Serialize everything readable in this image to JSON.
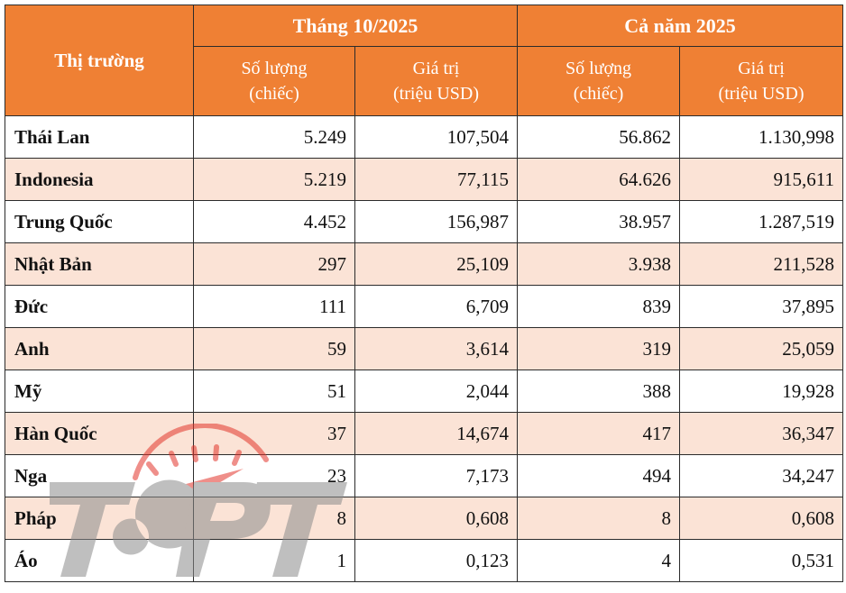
{
  "table": {
    "market_header": "Thị trường",
    "group_headers": [
      "Tháng 10/2025",
      "Cả năm 2025"
    ],
    "sub_headers": [
      {
        "line1": "Số lượng",
        "line2": "(chiếc)"
      },
      {
        "line1": "Giá trị",
        "line2": "(triệu USD)"
      },
      {
        "line1": "Số lượng",
        "line2": "(chiếc)"
      },
      {
        "line1": "Giá trị",
        "line2": "(triệu USD)"
      }
    ],
    "rows": [
      {
        "market": "Thái Lan",
        "m_qty": "5.249",
        "m_val": "107,504",
        "y_qty": "56.862",
        "y_val": "1.130,998"
      },
      {
        "market": "Indonesia",
        "m_qty": "5.219",
        "m_val": "77,115",
        "y_qty": "64.626",
        "y_val": "915,611"
      },
      {
        "market": "Trung Quốc",
        "m_qty": "4.452",
        "m_val": "156,987",
        "y_qty": "38.957",
        "y_val": "1.287,519"
      },
      {
        "market": "Nhật Bản",
        "m_qty": "297",
        "m_val": "25,109",
        "y_qty": "3.938",
        "y_val": "211,528"
      },
      {
        "market": "Đức",
        "m_qty": "111",
        "m_val": "6,709",
        "y_qty": "839",
        "y_val": "37,895"
      },
      {
        "market": "Anh",
        "m_qty": "59",
        "m_val": "3,614",
        "y_qty": "319",
        "y_val": "25,059"
      },
      {
        "market": "Mỹ",
        "m_qty": "51",
        "m_val": "2,044",
        "y_qty": "388",
        "y_val": "19,928"
      },
      {
        "market": "Hàn Quốc",
        "m_qty": "37",
        "m_val": "14,674",
        "y_qty": "417",
        "y_val": "36,347"
      },
      {
        "market": "Nga",
        "m_qty": "23",
        "m_val": "7,173",
        "y_qty": "494",
        "y_val": "34,247"
      },
      {
        "market": "Pháp",
        "m_qty": "8",
        "m_val": "0,608",
        "y_qty": "8",
        "y_val": "0,608"
      },
      {
        "market": "Áo",
        "m_qty": "1",
        "m_val": "0,123",
        "y_qty": "4",
        "y_val": "0,531"
      }
    ]
  },
  "watermark": {
    "text": "TOPT",
    "colors": {
      "red": "#e2352b",
      "gray": "#8c8c8c"
    }
  },
  "colors": {
    "header_bg": "#ef8034",
    "alt_row_bg": "#fbe3d6",
    "border": "#2b2b2b"
  }
}
